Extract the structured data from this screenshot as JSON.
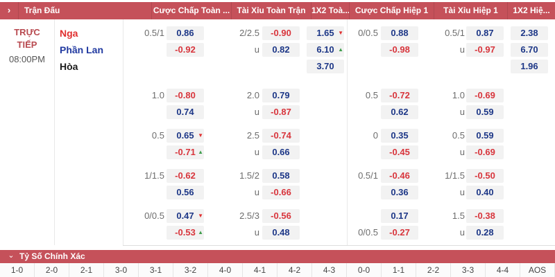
{
  "header": {
    "chevron_icon": "›",
    "columns": [
      {
        "label": "Trận Đấu"
      },
      {
        "label": "Cược Chấp Toàn ..."
      },
      {
        "label": "Tài Xỉu Toàn Trận"
      },
      {
        "label": "1X2 Toà..."
      },
      {
        "label": "Cược Chấp Hiệp 1"
      },
      {
        "label": "Tài Xỉu Hiệp 1"
      },
      {
        "label": "1X2 Hiệ..."
      }
    ]
  },
  "match": {
    "status_lines": [
      "TRỰC",
      "TIẾP"
    ],
    "time": "08:00PM",
    "teams": [
      {
        "name": "Nga",
        "color": "red"
      },
      {
        "name": "Phần Lan",
        "color": "blue"
      },
      {
        "name": "Hòa",
        "color": "black"
      }
    ]
  },
  "under_label": "u",
  "icons": {
    "up": "▲",
    "down": "▼"
  },
  "groups": [
    {
      "full": {
        "hdp": {
          "line": "0.5/1",
          "line_row": 0,
          "cells": [
            {
              "v": "0.86",
              "c": "blue"
            },
            {
              "v": "-0.92",
              "c": "red"
            }
          ]
        },
        "ou": {
          "line": "2/2.5",
          "cells": [
            {
              "v": "-0.90",
              "c": "red"
            },
            {
              "v": "0.82",
              "c": "blue"
            }
          ]
        },
        "x12": [
          {
            "v": "1.65",
            "c": "blue",
            "arrow": "down"
          },
          {
            "v": "6.10",
            "c": "blue",
            "arrow": "up"
          },
          {
            "v": "3.70",
            "c": "blue"
          }
        ]
      },
      "half": {
        "hdp": {
          "line": "0/0.5",
          "line_row": 0,
          "cells": [
            {
              "v": "0.88",
              "c": "blue"
            },
            {
              "v": "-0.98",
              "c": "red"
            }
          ]
        },
        "ou": {
          "line": "0.5/1",
          "cells": [
            {
              "v": "0.87",
              "c": "blue"
            },
            {
              "v": "-0.97",
              "c": "red"
            }
          ]
        },
        "x12": [
          {
            "v": "2.38",
            "c": "blue"
          },
          {
            "v": "6.70",
            "c": "blue"
          },
          {
            "v": "1.96",
            "c": "blue"
          }
        ]
      }
    },
    {
      "full": {
        "hdp": {
          "line": "1.0",
          "line_row": 0,
          "cells": [
            {
              "v": "-0.80",
              "c": "red"
            },
            {
              "v": "0.74",
              "c": "blue"
            }
          ]
        },
        "ou": {
          "line": "2.0",
          "cells": [
            {
              "v": "0.79",
              "c": "blue"
            },
            {
              "v": "-0.87",
              "c": "red"
            }
          ]
        }
      },
      "half": {
        "hdp": {
          "line": "0.5",
          "line_row": 0,
          "cells": [
            {
              "v": "-0.72",
              "c": "red"
            },
            {
              "v": "0.62",
              "c": "blue"
            }
          ]
        },
        "ou": {
          "line": "1.0",
          "cells": [
            {
              "v": "-0.69",
              "c": "red"
            },
            {
              "v": "0.59",
              "c": "blue"
            }
          ]
        }
      }
    },
    {
      "full": {
        "hdp": {
          "line": "0.5",
          "line_row": 0,
          "cells": [
            {
              "v": "0.65",
              "c": "blue",
              "arrow": "down"
            },
            {
              "v": "-0.71",
              "c": "red",
              "arrow": "up"
            }
          ]
        },
        "ou": {
          "line": "2.5",
          "cells": [
            {
              "v": "-0.74",
              "c": "red"
            },
            {
              "v": "0.66",
              "c": "blue"
            }
          ]
        }
      },
      "half": {
        "hdp": {
          "line": "0",
          "line_row": 0,
          "cells": [
            {
              "v": "0.35",
              "c": "blue"
            },
            {
              "v": "-0.45",
              "c": "red"
            }
          ]
        },
        "ou": {
          "line": "0.5",
          "cells": [
            {
              "v": "0.59",
              "c": "blue"
            },
            {
              "v": "-0.69",
              "c": "red"
            }
          ]
        }
      }
    },
    {
      "full": {
        "hdp": {
          "line": "1/1.5",
          "line_row": 0,
          "cells": [
            {
              "v": "-0.62",
              "c": "red"
            },
            {
              "v": "0.56",
              "c": "blue"
            }
          ]
        },
        "ou": {
          "line": "1.5/2",
          "cells": [
            {
              "v": "0.58",
              "c": "blue"
            },
            {
              "v": "-0.66",
              "c": "red"
            }
          ]
        }
      },
      "half": {
        "hdp": {
          "line": "0.5/1",
          "line_row": 0,
          "cells": [
            {
              "v": "-0.46",
              "c": "red"
            },
            {
              "v": "0.36",
              "c": "blue"
            }
          ]
        },
        "ou": {
          "line": "1/1.5",
          "cells": [
            {
              "v": "-0.50",
              "c": "red"
            },
            {
              "v": "0.40",
              "c": "blue"
            }
          ]
        }
      }
    },
    {
      "full": {
        "hdp": {
          "line": "0/0.5",
          "line_row": 0,
          "cells": [
            {
              "v": "0.47",
              "c": "blue",
              "arrow": "down"
            },
            {
              "v": "-0.53",
              "c": "red",
              "arrow": "up"
            }
          ]
        },
        "ou": {
          "line": "2.5/3",
          "cells": [
            {
              "v": "-0.56",
              "c": "red"
            },
            {
              "v": "0.48",
              "c": "blue"
            }
          ]
        }
      },
      "half": {
        "hdp": {
          "line": "0/0.5",
          "line_row": 1,
          "cells": [
            {
              "v": "0.17",
              "c": "blue"
            },
            {
              "v": "-0.27",
              "c": "red"
            }
          ]
        },
        "ou": {
          "line": "1.5",
          "cells": [
            {
              "v": "-0.38",
              "c": "red"
            },
            {
              "v": "0.28",
              "c": "blue"
            }
          ]
        }
      }
    }
  ],
  "correct_score": {
    "chevron_icon": "⌄",
    "title": "Tỷ Số Chính Xác",
    "options": [
      "1-0",
      "2-0",
      "2-1",
      "3-0",
      "3-1",
      "3-2",
      "4-0",
      "4-1",
      "4-2",
      "4-3",
      "0-0",
      "1-1",
      "2-2",
      "3-3",
      "4-4",
      "AOS"
    ]
  },
  "colors": {
    "bar_red": "#c5515a",
    "odds_blue": "#1d3787",
    "odds_red": "#d8353c",
    "up_green": "#3f9e4d",
    "down_red": "#e03131",
    "live_red": "#b84a50",
    "team_red": "#e02f2f",
    "team_blue": "#2039a0",
    "cell_bg": "#f2f2f2"
  }
}
